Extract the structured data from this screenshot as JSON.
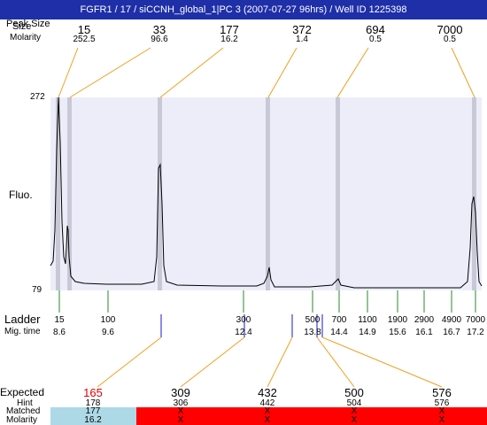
{
  "title": "FGFR1 / 17 / siCCNH_global_1|PC 3 (2007-07-27 96hrs) / Well ID 1225398",
  "top_labels": {
    "row1": "Peak Size",
    "row1_overlap": "Size",
    "row2": "Molarity"
  },
  "peaks": [
    {
      "size": "15",
      "molarity": "252.5"
    },
    {
      "size": "33",
      "molarity": "96.6"
    },
    {
      "size": "177",
      "molarity": "16.2"
    },
    {
      "size": "372",
      "molarity": "1.4"
    },
    {
      "size": "694",
      "molarity": "0.5"
    },
    {
      "size": "7000",
      "molarity": "0.5"
    }
  ],
  "y_axis": {
    "label": "Fluo.",
    "max": "272",
    "min": "79"
  },
  "ladder": {
    "label": "Ladder",
    "mig_label": "Mig. time",
    "items": [
      {
        "size": "15",
        "time": "8.6"
      },
      {
        "size": "100",
        "time": "9.6"
      },
      {
        "size": "300",
        "time": "12.4"
      },
      {
        "size": "500",
        "time": "13.8"
      },
      {
        "size": "700",
        "time": "14.4"
      },
      {
        "size": "1100",
        "time": "14.9"
      },
      {
        "size": "1900",
        "time": "15.6"
      },
      {
        "size": "2900",
        "time": "16.1"
      },
      {
        "size": "4900",
        "time": "16.7"
      },
      {
        "size": "7000",
        "time": "17.2"
      }
    ]
  },
  "bottom": {
    "labels": {
      "expected": "Expected",
      "hint": "Hint",
      "matched": "Matched",
      "molarity": "Molarity"
    },
    "columns": [
      {
        "expected": "165",
        "hint": "178",
        "matched": "177",
        "molarity": "16.2",
        "status": "matched"
      },
      {
        "expected": "309",
        "hint": "306",
        "matched": "X",
        "molarity": "X",
        "status": "unmatched"
      },
      {
        "expected": "432",
        "hint": "442",
        "matched": "X",
        "molarity": "X",
        "status": "unmatched"
      },
      {
        "expected": "500",
        "hint": "504",
        "matched": "X",
        "molarity": "X",
        "status": "unmatched"
      },
      {
        "expected": "576",
        "hint": "576",
        "matched": "X",
        "molarity": "X",
        "status": "unmatched"
      }
    ]
  },
  "colors": {
    "title_bg": "#1e2fa8",
    "plot_bg": "#ededfa",
    "peak_band": "#c8c8d6",
    "leader": "#f0a020",
    "ladder_tick": "#2a8a2a",
    "marker": "#1a1acc",
    "expected_highlight": "#e00000",
    "matched_bg": "#add8e6",
    "unmatched_bg": "#ff0000"
  }
}
